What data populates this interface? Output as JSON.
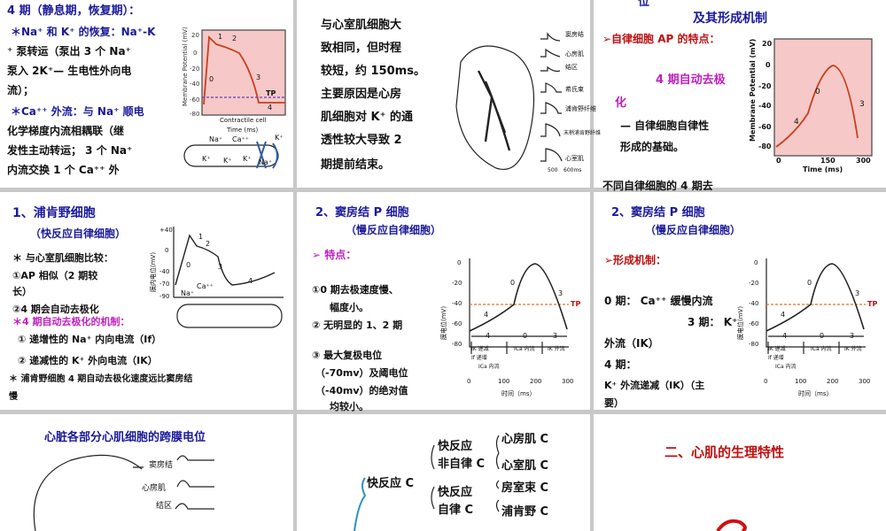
{
  "slides": [
    {
      "texts": [
        "4 期（静息期，恢复期）：",
        "＊Na⁺ 和 K⁺ 的恢复：Na⁺-K",
        "⁺ 泵转运（泵出 3 个 Na⁺",
        "泵入 2K⁺— 生电性外向电",
        "流）；",
        "＊Ca⁺⁺ 外流：与 Na⁺ 顺电",
        "化学梯度内流相耦联（继",
        "发性主动转运； 3 个 Na⁺",
        "内流交换 1 个 Ca⁺⁺ 外",
        "Membrane Potential (mV)",
        "20",
        "0",
        "-20",
        "-40",
        "-60",
        "-80",
        "1",
        "2",
        "0",
        "3",
        "TP",
        "4",
        "Contractile cell",
        "Time (ms)",
        "Na⁺",
        "Ca⁺⁺",
        "K⁺",
        "K⁺",
        "K⁺",
        "K⁺",
        "Na⁺"
      ]
    },
    {
      "texts": [
        "与心室肌细胞大",
        "致相同，但时程",
        "较短，约 150ms。",
        "主要原因是心房",
        "肌细胞对 K⁺ 的通",
        "透性较大导致 2",
        "期提前结束。",
        "窦房结",
        "心房肌",
        "结区",
        "希氏束",
        "浦肯野纤维",
        "末梢浦肯野纤维",
        "心室肌",
        "500",
        "600ms"
      ]
    },
    {
      "texts": [
        "位",
        "及其形成机制",
        "➢自律细胞 AP 的特点：",
        "4 期自动去极",
        "化",
        "— 自律细胞自律性",
        "形成的基础。",
        "不同自律细胞的 4 期去",
        "Membrane Potential (mV)",
        "20",
        "0",
        "-20",
        "-40",
        "-60",
        "-80",
        "0",
        "150",
        "300",
        "Time (ms)",
        "0",
        "3",
        "4"
      ]
    },
    {
      "texts": [
        "1、浦肯野细胞",
        "（快反应自律细胞）",
        "＊ 与心室肌细胞比较：",
        "①AP 相似（2 期较",
        "长）",
        "②4 期会自动去极化",
        "＊4 期自动去极化的机制：",
        "① 递增性的 Na⁺ 内向电流（If）",
        "② 递减性的 K⁺ 外向电流（IK）",
        "＊ 浦肯野细胞 4 期自动去极化速度远比窦房结",
        "慢",
        "膜内电位(mV)",
        "+40",
        "0",
        "-40",
        "-70",
        "-90",
        "0",
        "1",
        "2",
        "3",
        "4",
        "Na⁺",
        "Ca⁺⁺"
      ]
    },
    {
      "texts": [
        "2、窦房结 P 细胞",
        "（慢反应自律细胞）",
        "➢ 特点：",
        "①0 期去极速度慢、",
        "幅度小。",
        "② 无明显的 1、2 期",
        "③ 最大复极电位",
        "（-70mv）及阈电位",
        "（-40mv）的绝对值",
        "均较小。",
        "膜电位(mV)",
        "0",
        "-20",
        "-40",
        "-60",
        "-80",
        "0",
        "100",
        "200",
        "300",
        "时间（ms）",
        "TP",
        "0",
        "3",
        "4",
        "4",
        "0",
        "3",
        "IK 递减",
        "If 递增",
        "ICa 内流",
        "ICa 内流",
        "IK 外流"
      ]
    },
    {
      "texts": [
        "2、窦房结 P 细胞",
        "（慢反应自律细胞）",
        "➢形成机制：",
        "0 期： Ca⁺⁺ 缓慢内流",
        "3 期： K⁺",
        "外流（IK）",
        "4 期：",
        "K⁺ 外流递减（IK）（主",
        "要）",
        "膜电位(mV)",
        "0",
        "-20",
        "-40",
        "-60",
        "-80",
        "0",
        "100",
        "200",
        "300",
        "时间（ms）",
        "TP",
        "0",
        "3",
        "4",
        "4",
        "0",
        "3",
        "IK 递减",
        "If 递增",
        "ICa 内流",
        "ICa 内流",
        "IK 外流"
      ]
    },
    {
      "texts": [
        "心脏各部分心肌细胞的跨膜电位",
        "窦房结",
        "心房肌",
        "结区"
      ]
    },
    {
      "texts": [
        "快反应",
        "非自律 C",
        "心房肌 C",
        "心室肌 C",
        "快反应 C",
        "快反应",
        "自律 C",
        "房室束 C",
        "浦肯野 C"
      ]
    },
    {
      "texts": [
        "二、心肌的生理特性"
      ]
    }
  ]
}
